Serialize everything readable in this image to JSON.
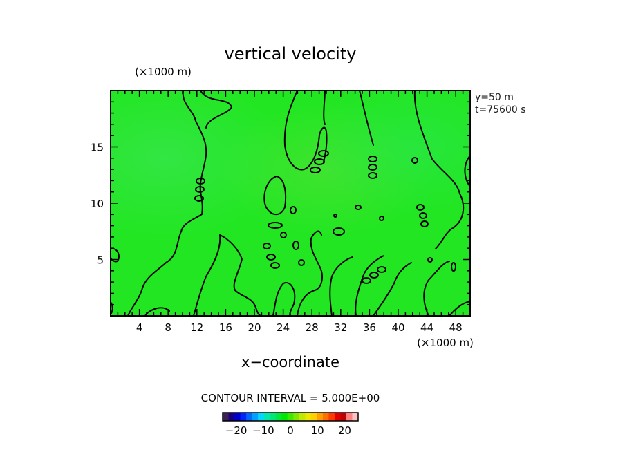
{
  "chart_data": {
    "type": "heatmap",
    "title": "vertical velocity",
    "xlabel": "x−coordinate",
    "x_unit": "(×1000 m)",
    "y_unit": "(×1000 m)",
    "xlim": [
      0,
      50
    ],
    "ylim": [
      0,
      20
    ],
    "x_ticks": [
      4,
      8,
      12,
      16,
      20,
      24,
      28,
      32,
      36,
      40,
      44,
      48
    ],
    "y_ticks": [
      5,
      10,
      15
    ],
    "info_lines": [
      "y=50  m",
      "t=75600  s"
    ],
    "contour_interval_text": "CONTOUR INTERVAL = 5.000E+00",
    "colorbar": {
      "min": -25,
      "max": 25,
      "tick_labels": [
        "−20",
        "−10",
        "0",
        "10",
        "20"
      ],
      "tick_values": [
        -20,
        -10,
        0,
        10,
        20
      ],
      "colors": [
        "#3c1f55",
        "#1a0080",
        "#0000cc",
        "#0024ff",
        "#0064ff",
        "#00a0ff",
        "#00d8ff",
        "#00e8b0",
        "#00e878",
        "#00e840",
        "#00e800",
        "#40e800",
        "#80e800",
        "#c0e800",
        "#e8e800",
        "#ffd000",
        "#ffa000",
        "#ff7000",
        "#ff3c00",
        "#e00000",
        "#c00000",
        "#ff8080",
        "#ffc0c0"
      ]
    },
    "field_color": "#22e622",
    "contour_level": 0
  }
}
